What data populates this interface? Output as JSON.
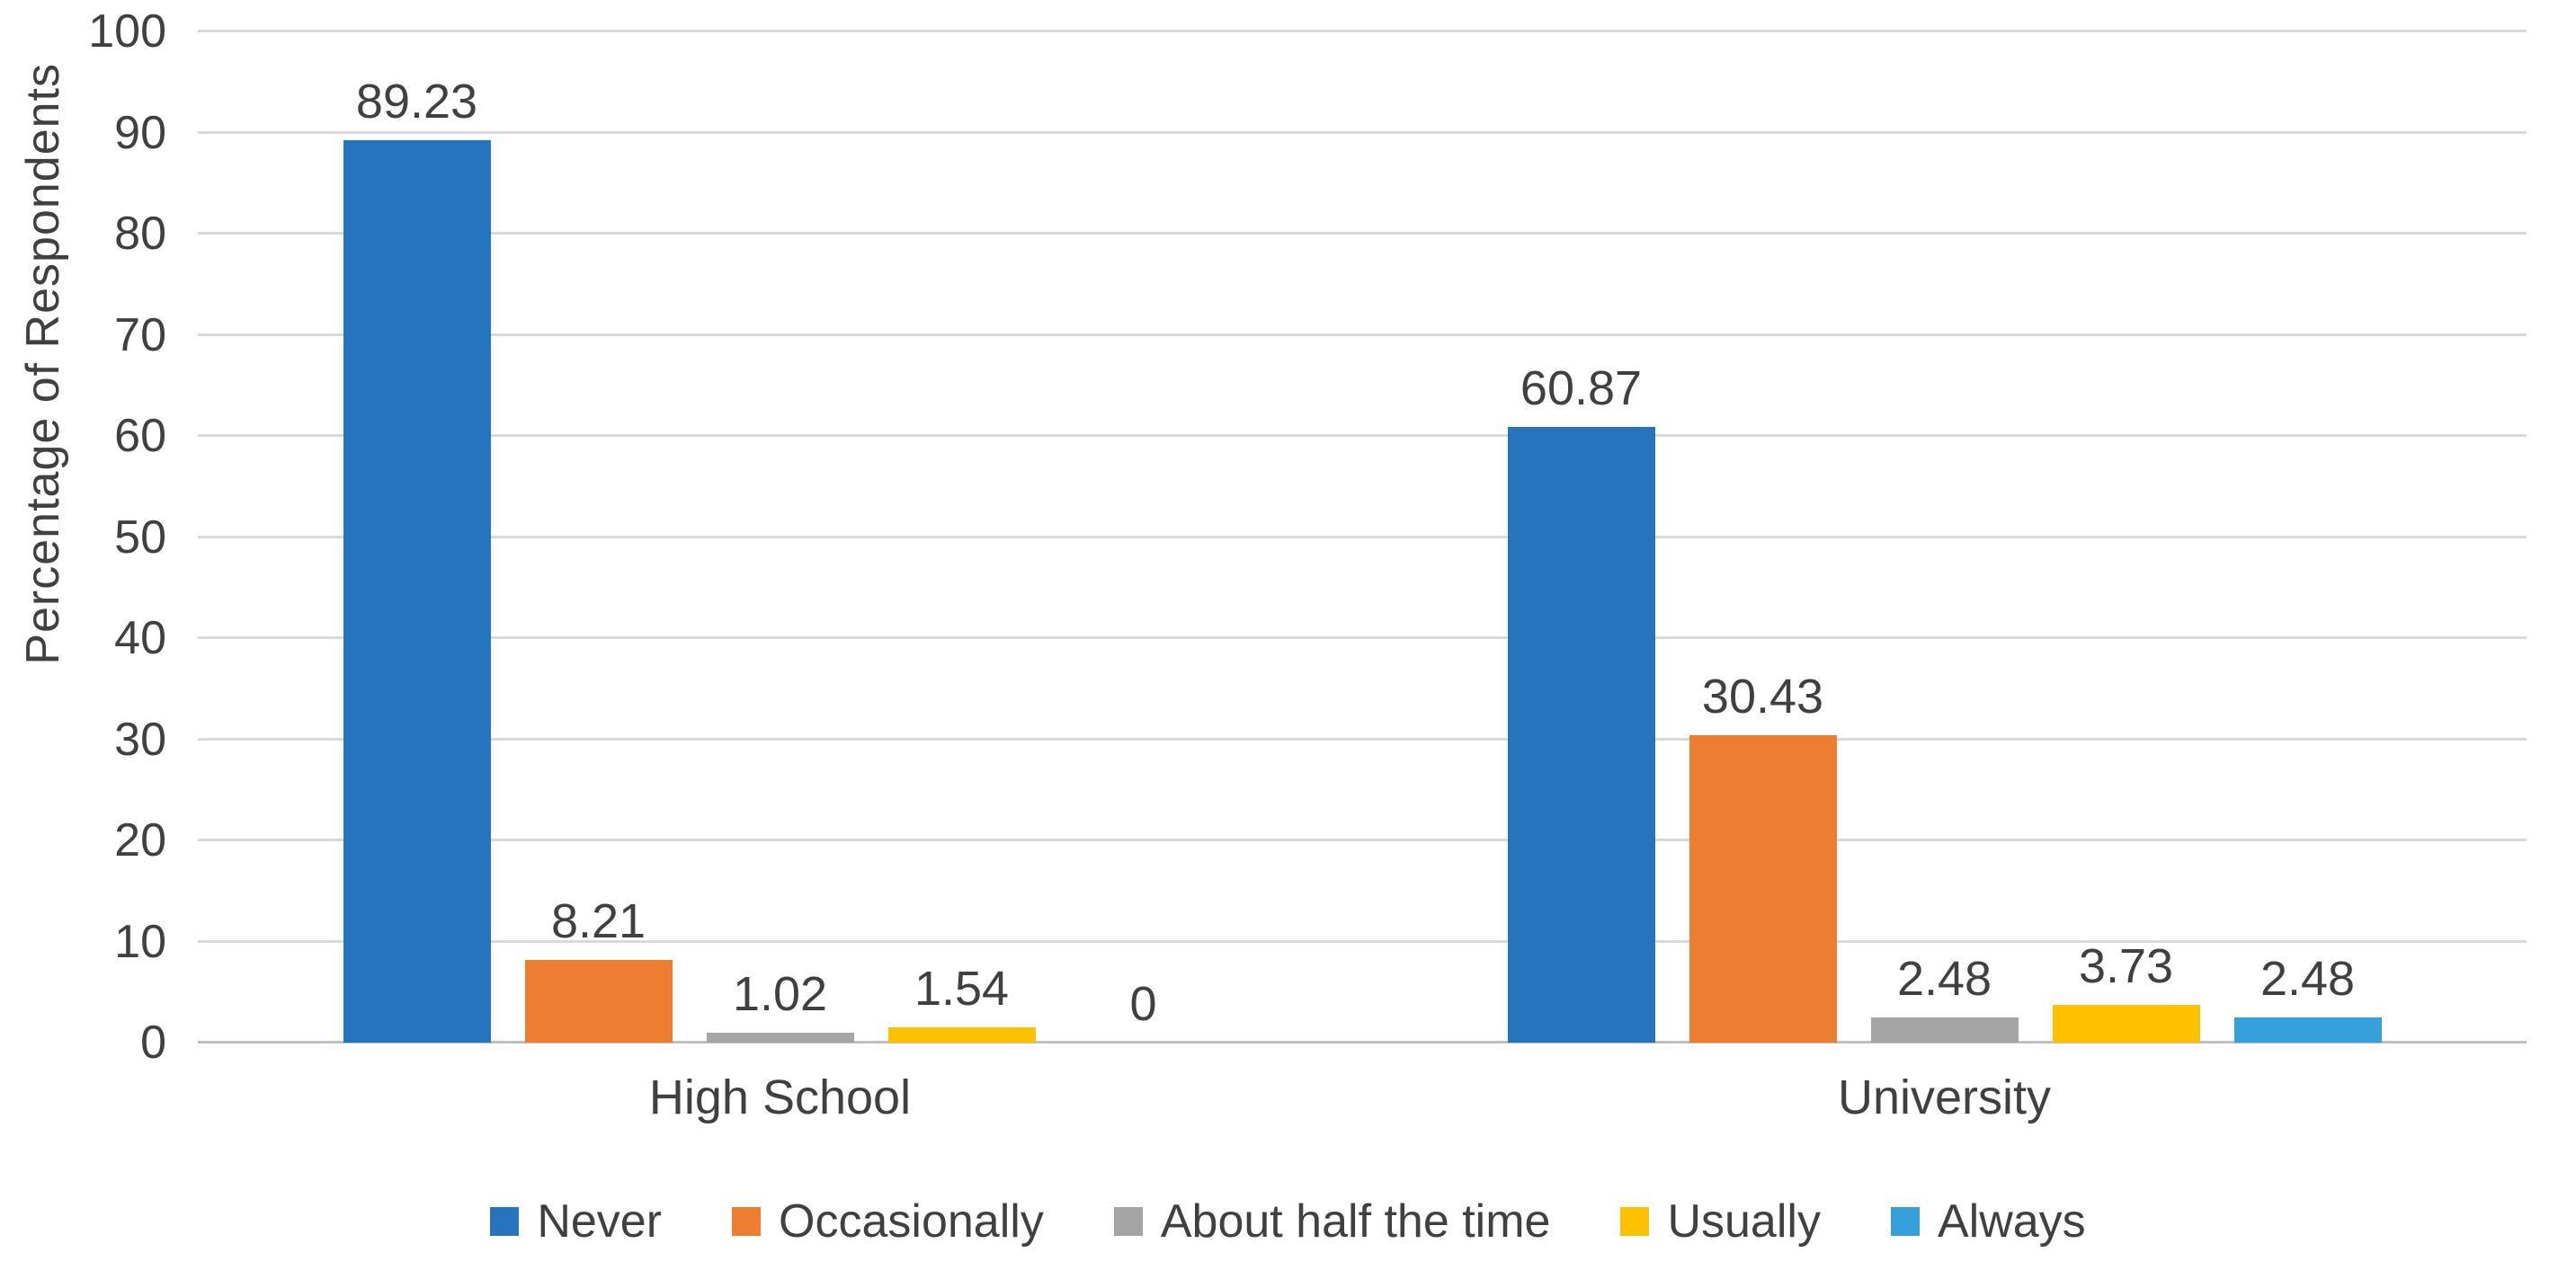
{
  "chart_data": {
    "type": "bar",
    "title": "",
    "xlabel": "",
    "ylabel": "Percentage of Respondents",
    "categories": [
      "High School",
      "University"
    ],
    "series": [
      {
        "name": "Never",
        "color": "#2674be",
        "values": [
          89.23,
          60.87
        ],
        "labels": [
          "89.23",
          "60.87"
        ]
      },
      {
        "name": "Occasionally",
        "color": "#ed7d31",
        "values": [
          8.21,
          30.43
        ],
        "labels": [
          "8.21",
          "30.43"
        ]
      },
      {
        "name": "About half the time",
        "color": "#a5a5a5",
        "values": [
          1.02,
          2.48
        ],
        "labels": [
          "1.02",
          "2.48"
        ]
      },
      {
        "name": "Usually",
        "color": "#ffc000",
        "values": [
          1.54,
          3.73
        ],
        "labels": [
          "1.54",
          "3.73"
        ]
      },
      {
        "name": "Always",
        "color": "#35a0db",
        "values": [
          0,
          2.48
        ],
        "labels": [
          "0",
          "2.48"
        ]
      }
    ],
    "ylim": [
      0,
      100
    ],
    "ytick_step": 10,
    "yticks": [
      0,
      10,
      20,
      30,
      40,
      50,
      60,
      70,
      80,
      90,
      100
    ],
    "grid": true,
    "gridline_color": "#d9d9d9",
    "axis_line_color": "#bfbfbf",
    "text_color": "#404040",
    "legend_position": "bottom",
    "data_labels_visible": true
  }
}
